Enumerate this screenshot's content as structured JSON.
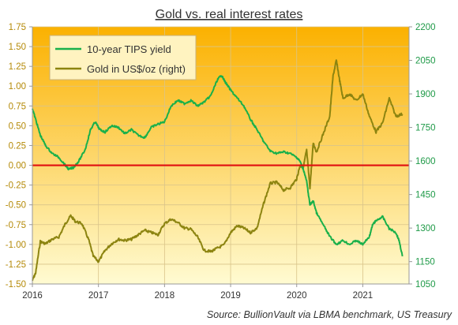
{
  "chart_data": {
    "type": "line",
    "title": "Gold vs. real interest rates",
    "source": "Source: BullionVault via LBMA benchmark, US Treasury",
    "x_ticks": [
      "2016",
      "2017",
      "2018",
      "2019",
      "2020",
      "2021"
    ],
    "y_left": {
      "ylim": [
        -1.5,
        1.75
      ],
      "ticks": [
        "1.75",
        "1.50",
        "1.25",
        "1.00",
        "0.75",
        "0.50",
        "0.25",
        "0.00",
        "-0.25",
        "-0.50",
        "-0.75",
        "-1.00",
        "-1.25",
        "-1.50"
      ]
    },
    "y_right": {
      "ylim": [
        1050,
        2200
      ],
      "ticks": [
        "2200",
        "2050",
        "1900",
        "1750",
        "1600",
        "1450",
        "1300",
        "1150",
        "1050"
      ]
    },
    "zero_line_value": 0,
    "legend": {
      "placement": "top-left"
    },
    "colors": {
      "tips": "#19b04a",
      "gold": "#8c8410",
      "zero": "#e01010",
      "bg_top": "#fbb100",
      "bg_bottom": "#fffbd2",
      "left_axis_text": "#b58a08",
      "right_axis_text": "#1f9a48"
    },
    "series": [
      {
        "name": "10-year TIPS yield",
        "axis": "left",
        "x": [
          2016.0,
          2016.06,
          2016.12,
          2016.2,
          2016.3,
          2016.4,
          2016.5,
          2016.55,
          2016.62,
          2016.7,
          2016.8,
          2016.88,
          2016.95,
          2017.02,
          2017.1,
          2017.2,
          2017.3,
          2017.4,
          2017.5,
          2017.6,
          2017.7,
          2017.8,
          2017.9,
          2018.0,
          2018.1,
          2018.2,
          2018.3,
          2018.4,
          2018.5,
          2018.6,
          2018.7,
          2018.8,
          2018.86,
          2018.92,
          2019.0,
          2019.1,
          2019.2,
          2019.3,
          2019.4,
          2019.5,
          2019.6,
          2019.7,
          2019.8,
          2019.9,
          2020.0,
          2020.05,
          2020.1,
          2020.15,
          2020.2,
          2020.25,
          2020.3,
          2020.4,
          2020.5,
          2020.6,
          2020.7,
          2020.8,
          2020.9,
          2021.0,
          2021.1,
          2021.15,
          2021.2,
          2021.3,
          2021.4,
          2021.5,
          2021.55,
          2021.6
        ],
        "values": [
          0.72,
          0.55,
          0.38,
          0.25,
          0.15,
          0.1,
          0.0,
          -0.05,
          -0.03,
          0.05,
          0.2,
          0.45,
          0.55,
          0.45,
          0.42,
          0.5,
          0.48,
          0.4,
          0.45,
          0.38,
          0.35,
          0.48,
          0.52,
          0.55,
          0.75,
          0.82,
          0.78,
          0.82,
          0.75,
          0.8,
          0.88,
          1.08,
          1.14,
          1.05,
          0.95,
          0.85,
          0.75,
          0.58,
          0.45,
          0.3,
          0.18,
          0.15,
          0.17,
          0.15,
          0.1,
          0.05,
          -0.05,
          -0.2,
          -0.5,
          -0.45,
          -0.6,
          -0.75,
          -0.9,
          -1.0,
          -0.95,
          -1.0,
          -0.95,
          -1.0,
          -0.9,
          -0.75,
          -0.7,
          -0.65,
          -0.8,
          -0.85,
          -0.95,
          -1.15
        ]
      },
      {
        "name": "Gold in US$/oz (right)",
        "axis": "right",
        "x": [
          2016.0,
          2016.05,
          2016.12,
          2016.2,
          2016.3,
          2016.4,
          2016.5,
          2016.58,
          2016.65,
          2016.75,
          2016.85,
          2016.92,
          2017.0,
          2017.1,
          2017.2,
          2017.3,
          2017.4,
          2017.5,
          2017.6,
          2017.7,
          2017.8,
          2017.9,
          2018.0,
          2018.1,
          2018.2,
          2018.3,
          2018.4,
          2018.5,
          2018.6,
          2018.7,
          2018.8,
          2018.9,
          2019.0,
          2019.1,
          2019.2,
          2019.3,
          2019.4,
          2019.5,
          2019.6,
          2019.7,
          2019.8,
          2019.9,
          2020.0,
          2020.05,
          2020.1,
          2020.15,
          2020.2,
          2020.25,
          2020.3,
          2020.4,
          2020.5,
          2020.55,
          2020.6,
          2020.65,
          2020.7,
          2020.8,
          2020.9,
          2021.0,
          2021.1,
          2021.2,
          2021.3,
          2021.4,
          2021.5,
          2021.6
        ],
        "values": [
          1065,
          1100,
          1240,
          1230,
          1250,
          1260,
          1320,
          1355,
          1330,
          1320,
          1250,
          1175,
          1150,
          1200,
          1230,
          1250,
          1245,
          1250,
          1270,
          1290,
          1280,
          1270,
          1320,
          1340,
          1325,
          1300,
          1295,
          1260,
          1200,
          1195,
          1210,
          1225,
          1280,
          1310,
          1300,
          1280,
          1300,
          1410,
          1500,
          1505,
          1470,
          1480,
          1520,
          1580,
          1570,
          1650,
          1480,
          1680,
          1640,
          1720,
          1800,
          1980,
          2050,
          1960,
          1880,
          1900,
          1870,
          1900,
          1800,
          1730,
          1770,
          1880,
          1800,
          1810
        ]
      }
    ]
  }
}
